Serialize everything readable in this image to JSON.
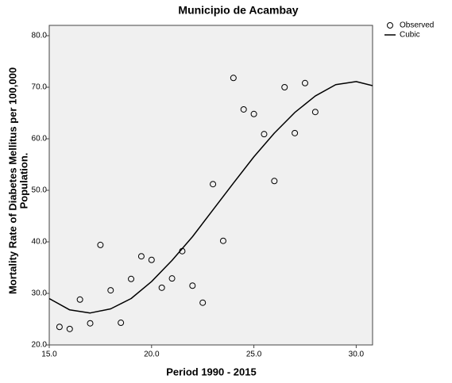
{
  "chart_data": {
    "type": "scatter",
    "title": "Municipio de Acambay",
    "x_label": "Period 1990 - 2015",
    "y_label": [
      "Mortality Rate of Diabetes Mellitus per 100,000",
      "Population."
    ],
    "xlim": [
      15,
      30.8
    ],
    "ylim": [
      20,
      82
    ],
    "xticks": [
      {
        "value": 15,
        "label": "15.0"
      },
      {
        "value": 20,
        "label": "20.0"
      },
      {
        "value": 25,
        "label": "25.0"
      },
      {
        "value": 30,
        "label": "30.0"
      }
    ],
    "yticks": [
      {
        "value": 20,
        "label": "20.0"
      },
      {
        "value": 30,
        "label": "30.0"
      },
      {
        "value": 40,
        "label": "40.0"
      },
      {
        "value": 50,
        "label": "50.0"
      },
      {
        "value": 60,
        "label": "60.0"
      },
      {
        "value": 70,
        "label": "70.0"
      },
      {
        "value": 80,
        "label": "80.0"
      }
    ],
    "legend": "top-right",
    "series": [
      {
        "name": "Observed",
        "type": "scatter",
        "color": "#000000",
        "x": [
          15.5,
          16.0,
          16.5,
          17.0,
          17.5,
          18.0,
          18.5,
          19.0,
          19.5,
          20.0,
          20.5,
          21.0,
          21.5,
          22.0,
          22.5,
          23.0,
          23.5,
          24.0,
          24.5,
          25.0,
          25.5,
          26.0,
          26.5,
          27.0,
          27.5,
          28.0
        ],
        "values": [
          23.5,
          23.1,
          28.8,
          24.2,
          39.4,
          30.6,
          24.3,
          32.8,
          37.2,
          36.5,
          31.1,
          32.9,
          38.2,
          31.5,
          28.2,
          51.2,
          40.2,
          71.8,
          65.7,
          64.8,
          60.9,
          51.8,
          70.0,
          61.1,
          70.8,
          65.2
        ]
      },
      {
        "name": "Cubic",
        "type": "line",
        "color": "#000000",
        "x": [
          15,
          16,
          17,
          18,
          19,
          20,
          21,
          22,
          23,
          24,
          25,
          26,
          27,
          28,
          29,
          30,
          30.8
        ],
        "values": [
          29.0,
          26.8,
          26.2,
          27.0,
          29.0,
          32.3,
          36.4,
          41.0,
          46.2,
          51.4,
          56.5,
          61.1,
          65.1,
          68.3,
          70.5,
          71.1,
          70.3
        ]
      }
    ]
  }
}
